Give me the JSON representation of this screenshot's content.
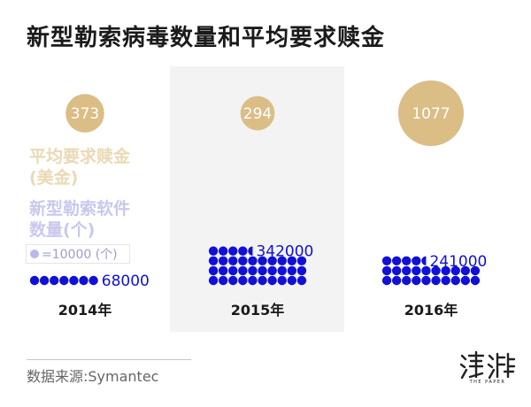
{
  "title": "新型勒索病毒数量和平均要求赎金",
  "legend": {
    "ransom_label_line1": "平均要求赎金",
    "ransom_label_line2": "(美金)",
    "count_label_line1": "新型勒索软件",
    "count_label_line2": "数量(个)",
    "unit_text": "=10000 (个)"
  },
  "source": "数据来源:Symantec",
  "colors": {
    "ransom": "#dbbd86",
    "count": "#1010d8",
    "panel_bg": "#f3f3f3"
  },
  "chart_data": {
    "type": "bubble-pictogram",
    "title": "新型勒索病毒数量和平均要求赎金",
    "categories": [
      "2014年",
      "2015年",
      "2016年"
    ],
    "series": [
      {
        "name": "平均要求赎金(美金)",
        "values": [
          373,
          294,
          1077
        ],
        "value_labels": [
          "373",
          "294",
          "1077"
        ]
      },
      {
        "name": "新型勒索软件数量(个)",
        "values": [
          68000,
          342000,
          241000
        ],
        "value_labels": [
          "68000",
          "342000",
          "241000"
        ]
      }
    ],
    "dot_unit": 10000,
    "highlighted_category": "2015年"
  },
  "logo_icon": "the-paper-logo"
}
